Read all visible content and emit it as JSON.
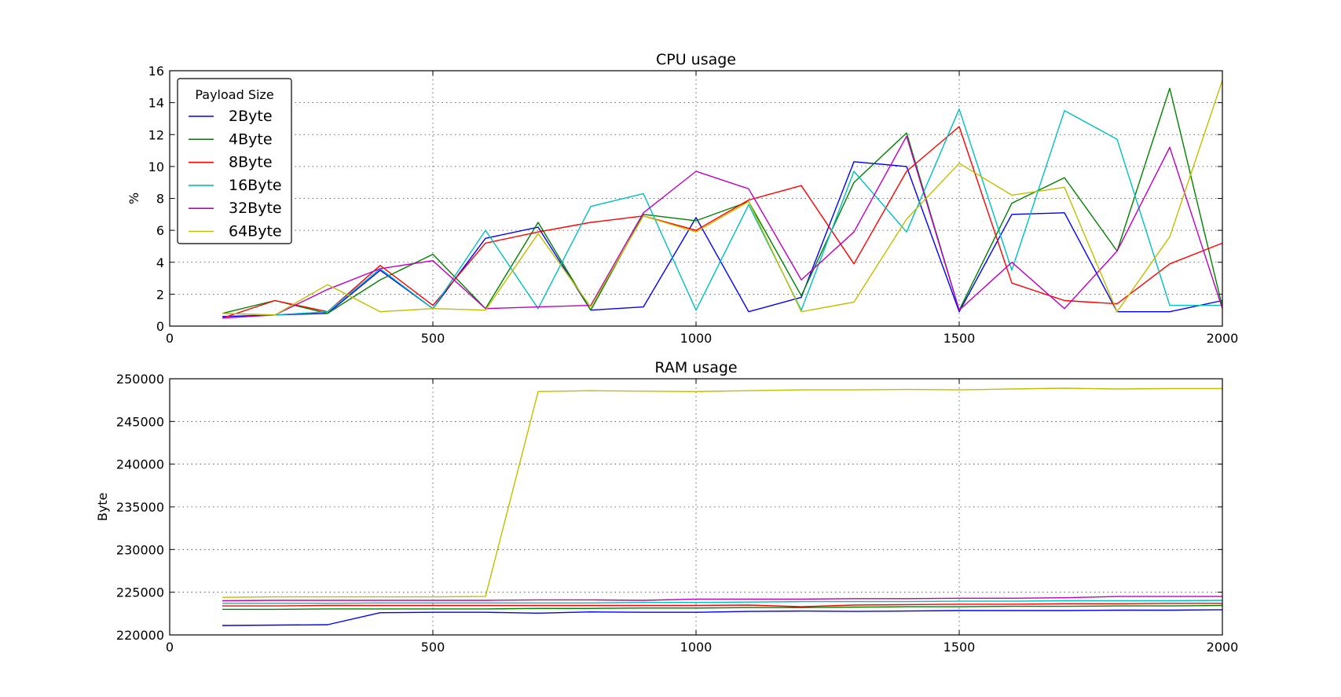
{
  "chart_data": [
    {
      "type": "line",
      "title": "CPU usage",
      "xlabel": "",
      "ylabel": "%",
      "xlim": [
        0,
        2000
      ],
      "ylim": [
        0,
        16
      ],
      "xticks": [
        0,
        500,
        1000,
        1500,
        2000
      ],
      "yticks": [
        0,
        2,
        4,
        6,
        8,
        10,
        12,
        14,
        16
      ],
      "grid": true,
      "legend": {
        "title": "Payload Size",
        "placement": "top-left"
      },
      "x": [
        100,
        200,
        300,
        400,
        500,
        600,
        700,
        800,
        900,
        1000,
        1100,
        1200,
        1300,
        1400,
        1500,
        1600,
        1700,
        1800,
        1900,
        2000
      ],
      "series": [
        {
          "name": "2Byte",
          "color": "#0000ff",
          "values": [
            0.6,
            0.7,
            0.8,
            3.5,
            1.1,
            5.5,
            6.2,
            1.0,
            1.2,
            6.8,
            0.9,
            1.8,
            10.3,
            10.0,
            0.9,
            7.0,
            7.1,
            0.9,
            0.9,
            1.6
          ]
        },
        {
          "name": "4Byte",
          "color": "#008000",
          "values": [
            0.8,
            1.6,
            0.8,
            2.9,
            4.5,
            1.1,
            6.5,
            1.0,
            7.0,
            6.6,
            7.8,
            1.9,
            9.0,
            12.1,
            1.0,
            7.7,
            9.3,
            4.7,
            14.9,
            1.2
          ]
        },
        {
          "name": "8Byte",
          "color": "#ff0000",
          "values": [
            0.5,
            1.6,
            0.9,
            3.8,
            1.3,
            5.2,
            5.9,
            6.5,
            6.9,
            6.0,
            7.9,
            8.8,
            3.9,
            9.7,
            12.5,
            2.7,
            1.6,
            1.4,
            3.9,
            5.2
          ]
        },
        {
          "name": "16Byte",
          "color": "#00bfbf",
          "values": [
            0.8,
            0.7,
            0.9,
            3.6,
            1.1,
            6.0,
            1.1,
            7.5,
            8.3,
            1.0,
            7.6,
            1.0,
            9.7,
            5.9,
            13.6,
            3.5,
            13.5,
            11.7,
            1.3,
            1.3
          ]
        },
        {
          "name": "32Byte",
          "color": "#bf00bf",
          "values": [
            0.5,
            0.7,
            2.3,
            3.6,
            4.1,
            1.1,
            1.2,
            1.3,
            7.1,
            9.7,
            8.6,
            2.9,
            5.9,
            11.9,
            1.0,
            4.0,
            1.1,
            4.7,
            11.2,
            1.1
          ]
        },
        {
          "name": "64Byte",
          "color": "#bfbf00",
          "values": [
            0.8,
            0.7,
            2.6,
            0.9,
            1.1,
            1.0,
            5.8,
            1.2,
            6.9,
            5.9,
            7.8,
            0.9,
            1.5,
            6.7,
            10.2,
            8.2,
            8.7,
            0.9,
            5.6,
            15.4
          ]
        }
      ]
    },
    {
      "type": "line",
      "title": "RAM usage",
      "xlabel": "",
      "ylabel": "Byte",
      "xlim": [
        0,
        2000
      ],
      "ylim": [
        220000,
        250000
      ],
      "xticks": [
        0,
        500,
        1000,
        1500,
        2000
      ],
      "yticks": [
        220000,
        225000,
        230000,
        235000,
        240000,
        245000,
        250000
      ],
      "grid": true,
      "x": [
        100,
        200,
        300,
        400,
        500,
        600,
        700,
        800,
        900,
        1000,
        1100,
        1200,
        1300,
        1400,
        1500,
        1600,
        1700,
        1800,
        1900,
        2000
      ],
      "series": [
        {
          "name": "2Byte",
          "color": "#0000ff",
          "values": [
            221100,
            221150,
            221200,
            222600,
            222650,
            222650,
            222550,
            222700,
            222650,
            222650,
            222750,
            222800,
            222750,
            222800,
            222850,
            222850,
            222850,
            222900,
            222900,
            222950
          ]
        },
        {
          "name": "4Byte",
          "color": "#008000",
          "values": [
            223000,
            223000,
            223050,
            223050,
            223050,
            223050,
            223100,
            223100,
            223150,
            223150,
            223200,
            223200,
            223250,
            223300,
            223300,
            223350,
            223350,
            223400,
            223400,
            223450
          ]
        },
        {
          "name": "8Byte",
          "color": "#ff0000",
          "values": [
            223400,
            223400,
            223450,
            223450,
            223450,
            223450,
            223450,
            223450,
            223450,
            223450,
            223500,
            223300,
            223500,
            223550,
            223600,
            223600,
            223650,
            223650,
            223700,
            223700
          ]
        },
        {
          "name": "16Byte",
          "color": "#00bfbf",
          "values": [
            223700,
            223700,
            223700,
            223750,
            223750,
            223750,
            223750,
            223750,
            223800,
            223800,
            223850,
            223900,
            223900,
            223900,
            223950,
            223950,
            224000,
            224000,
            224000,
            224050
          ]
        },
        {
          "name": "32Byte",
          "color": "#bf00bf",
          "values": [
            224000,
            224050,
            224050,
            224050,
            224050,
            224050,
            224100,
            224100,
            224050,
            224200,
            224200,
            224200,
            224250,
            224250,
            224300,
            224300,
            224350,
            224500,
            224500,
            224500
          ]
        },
        {
          "name": "64Byte",
          "color": "#bfbf00",
          "values": [
            224400,
            224450,
            224450,
            224450,
            224450,
            224500,
            248500,
            248600,
            248550,
            248500,
            248600,
            248700,
            248700,
            248750,
            248700,
            248800,
            248900,
            248800,
            248850,
            248850
          ]
        }
      ]
    }
  ]
}
